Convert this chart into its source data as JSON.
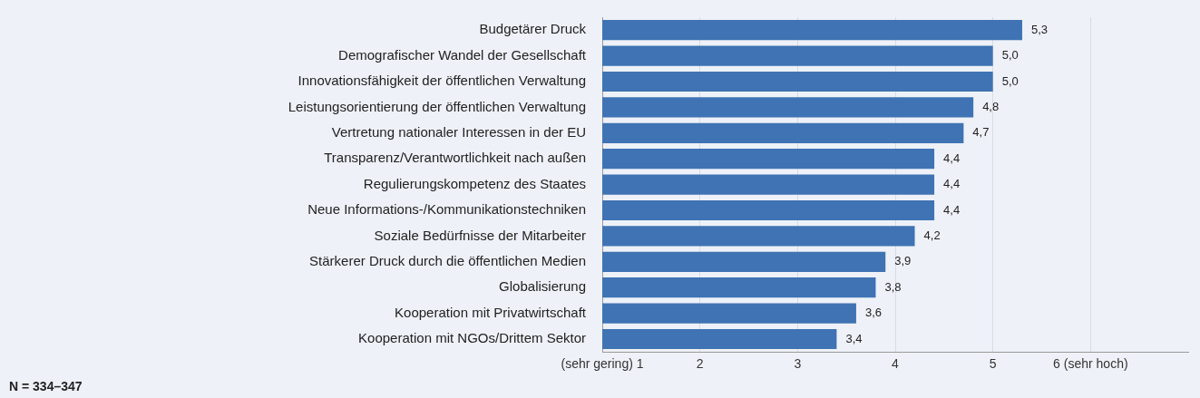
{
  "chart_data": {
    "type": "bar",
    "orientation": "horizontal",
    "categories": [
      "Budgetärer Druck",
      "Demografischer Wandel der Gesellschaft",
      "Innovationsfähigkeit der öffentlichen Verwaltung",
      "Leistungsorientierung der öffentlichen Verwaltung",
      "Vertretung nationaler Interessen in der EU",
      "Transparenz/Verantwortlichkeit nach außen",
      "Regulierungskompetenz des Staates",
      "Neue Informations-/Kommunikationstechniken",
      "Soziale Bedürfnisse der Mitarbeiter",
      "Stärkerer Druck durch die öffentlichen Medien",
      "Globalisierung",
      "Kooperation mit Privatwirtschaft",
      "Kooperation mit NGOs/Drittem Sektor"
    ],
    "values": [
      5.3,
      5.0,
      5.0,
      4.8,
      4.7,
      4.4,
      4.4,
      4.4,
      4.2,
      3.9,
      3.8,
      3.6,
      3.4
    ],
    "value_labels": [
      "5,3",
      "5,0",
      "5,0",
      "4,8",
      "4,7",
      "4,4",
      "4,4",
      "4,4",
      "4,2",
      "3,9",
      "3,8",
      "3,6",
      "3,4"
    ],
    "color": "#3f73b3",
    "xlim": [
      1,
      7
    ],
    "xticks": [
      {
        "value": 1,
        "label": "(sehr gering) 1"
      },
      2,
      3,
      4,
      5,
      {
        "value": 6,
        "label": "6 (sehr hoch)"
      }
    ],
    "grid": "x",
    "annotations": [
      "N = 334–347"
    ]
  }
}
